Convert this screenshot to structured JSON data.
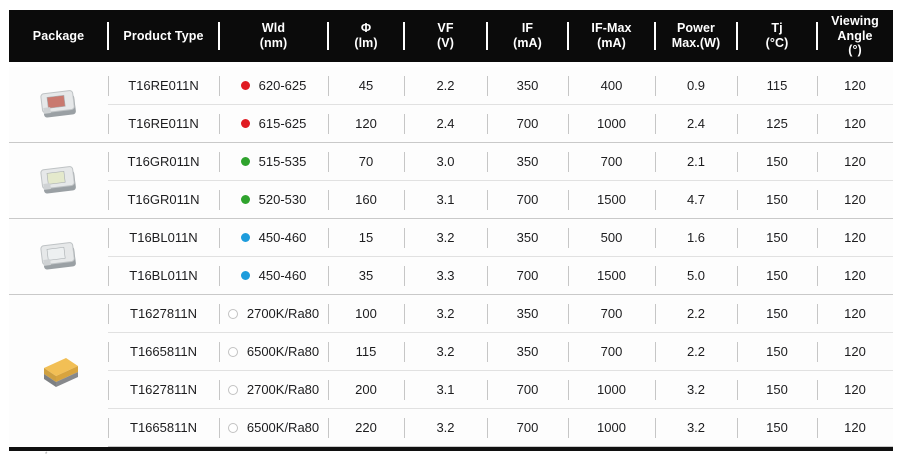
{
  "table": {
    "columns": [
      {
        "id": "package",
        "lines": [
          "Package"
        ]
      },
      {
        "id": "product-type",
        "lines": [
          "Product Type"
        ]
      },
      {
        "id": "wld",
        "lines": [
          "Wld",
          "(nm)"
        ]
      },
      {
        "id": "phi",
        "lines": [
          "Φ",
          "(lm)"
        ]
      },
      {
        "id": "vf",
        "lines": [
          "VF",
          "(V)"
        ]
      },
      {
        "id": "if",
        "lines": [
          "IF",
          "(mA)"
        ]
      },
      {
        "id": "if-max",
        "lines": [
          "IF-Max",
          "(mA)"
        ]
      },
      {
        "id": "power-max",
        "lines": [
          "Power",
          "Max.(W)"
        ]
      },
      {
        "id": "tj",
        "lines": [
          "Tj",
          "(°C)"
        ]
      },
      {
        "id": "viewing-angle",
        "lines": [
          "Viewing",
          "Angle",
          "(°)"
        ]
      }
    ],
    "groups": [
      {
        "package_icon": "smd-clear-red",
        "rows": [
          {
            "product_type": "T16RE011N",
            "dot": "filled",
            "dot_color": "#e01b22",
            "wld": "620-625",
            "phi": "45",
            "vf": "2.2",
            "if": "350",
            "if_max": "400",
            "power_max": "0.9",
            "tj": "115",
            "viewing_angle": "120"
          },
          {
            "product_type": "T16RE011N",
            "dot": "filled",
            "dot_color": "#e01b22",
            "wld": "615-625",
            "phi": "120",
            "vf": "2.4",
            "if": "700",
            "if_max": "1000",
            "power_max": "2.4",
            "tj": "125",
            "viewing_angle": "120"
          }
        ]
      },
      {
        "package_icon": "smd-clear-green",
        "rows": [
          {
            "product_type": "T16GR011N",
            "dot": "filled",
            "dot_color": "#2fa32d",
            "wld": "515-535",
            "phi": "70",
            "vf": "3.0",
            "if": "350",
            "if_max": "700",
            "power_max": "2.1",
            "tj": "150",
            "viewing_angle": "120"
          },
          {
            "product_type": "T16GR011N",
            "dot": "filled",
            "dot_color": "#2fa32d",
            "wld": "520-530",
            "phi": "160",
            "vf": "3.1",
            "if": "700",
            "if_max": "1500",
            "power_max": "4.7",
            "tj": "150",
            "viewing_angle": "120"
          }
        ]
      },
      {
        "package_icon": "smd-clear-blue",
        "rows": [
          {
            "product_type": "T16BL011N",
            "dot": "filled",
            "dot_color": "#1d9cdc",
            "wld": "450-460",
            "phi": "15",
            "vf": "3.2",
            "if": "350",
            "if_max": "500",
            "power_max": "1.6",
            "tj": "150",
            "viewing_angle": "120"
          },
          {
            "product_type": "T16BL011N",
            "dot": "filled",
            "dot_color": "#1d9cdc",
            "wld": "450-460",
            "phi": "35",
            "vf": "3.3",
            "if": "700",
            "if_max": "1500",
            "power_max": "5.0",
            "tj": "150",
            "viewing_angle": "120"
          }
        ]
      },
      {
        "package_icon": "smd-yellow",
        "rows": [
          {
            "product_type": "T1627811N",
            "dot": "open",
            "dot_color": "#c2c2c2",
            "wld": "2700K/Ra80",
            "phi": "100",
            "vf": "3.2",
            "if": "350",
            "if_max": "700",
            "power_max": "2.2",
            "tj": "150",
            "viewing_angle": "120"
          },
          {
            "product_type": "T1665811N",
            "dot": "open",
            "dot_color": "#c2c2c2",
            "wld": "6500K/Ra80",
            "phi": "115",
            "vf": "3.2",
            "if": "350",
            "if_max": "700",
            "power_max": "2.2",
            "tj": "150",
            "viewing_angle": "120"
          },
          {
            "product_type": "T1627811N",
            "dot": "open",
            "dot_color": "#c2c2c2",
            "wld": "2700K/Ra80",
            "phi": "200",
            "vf": "3.1",
            "if": "700",
            "if_max": "1000",
            "power_max": "3.2",
            "tj": "150",
            "viewing_angle": "120"
          },
          {
            "product_type": "T1665811N",
            "dot": "open",
            "dot_color": "#c2c2c2",
            "wld": "6500K/Ra80",
            "phi": "220",
            "vf": "3.2",
            "if": "700",
            "if_max": "1000",
            "power_max": "3.2",
            "tj": "150",
            "viewing_angle": "120"
          }
        ]
      }
    ]
  },
  "colors": {
    "header_bg": "#0b0b0b",
    "header_text": "#ffffff",
    "row_separator": "#e1e1e1",
    "group_separator": "#c9c9c9",
    "bottom_rule": "#101010",
    "dot_red": "#e01b22",
    "dot_green": "#2fa32d",
    "dot_blue": "#1d9cdc"
  },
  "footnote_mark": "*"
}
